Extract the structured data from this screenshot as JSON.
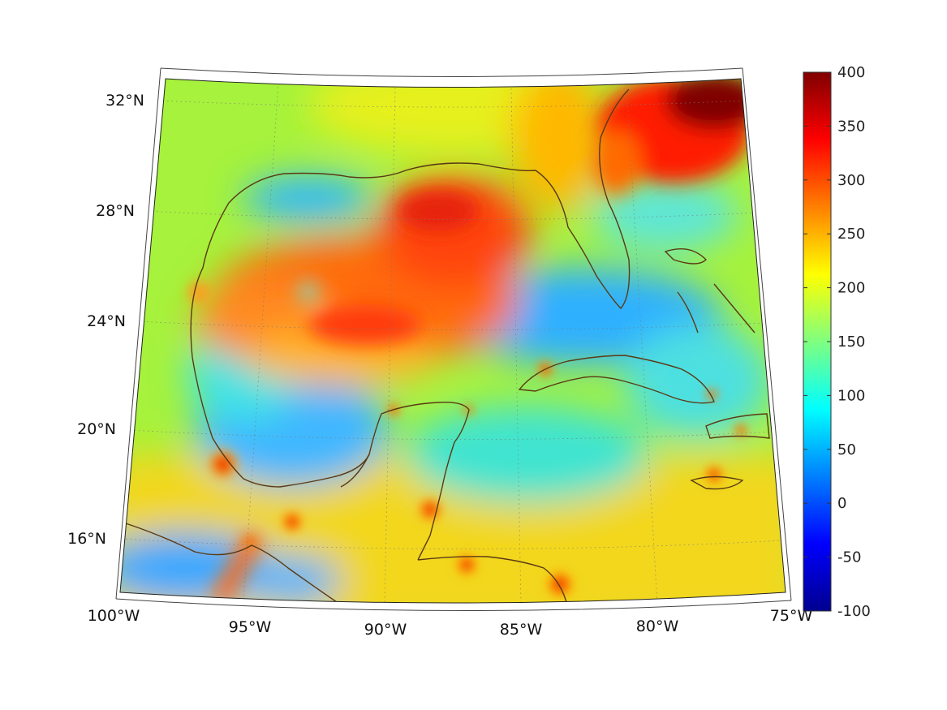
{
  "map": {
    "lon_labels": [
      "100°W",
      "95°W",
      "90°W",
      "85°W",
      "80°W",
      "75°W"
    ],
    "lat_labels": [
      "32°N",
      "28°N",
      "24°N",
      "20°N",
      "16°N"
    ],
    "lon_range": [
      -100,
      -75
    ],
    "lat_range": [
      14,
      33
    ],
    "colormap": "jet",
    "coastline_color": "#5a3a14",
    "grid": "dotted"
  },
  "colorbar": {
    "min": -100,
    "max": 400,
    "tick_labels": [
      "400",
      "350",
      "300",
      "250",
      "200",
      "150",
      "100",
      "50",
      "0",
      "-50",
      "-100"
    ]
  }
}
